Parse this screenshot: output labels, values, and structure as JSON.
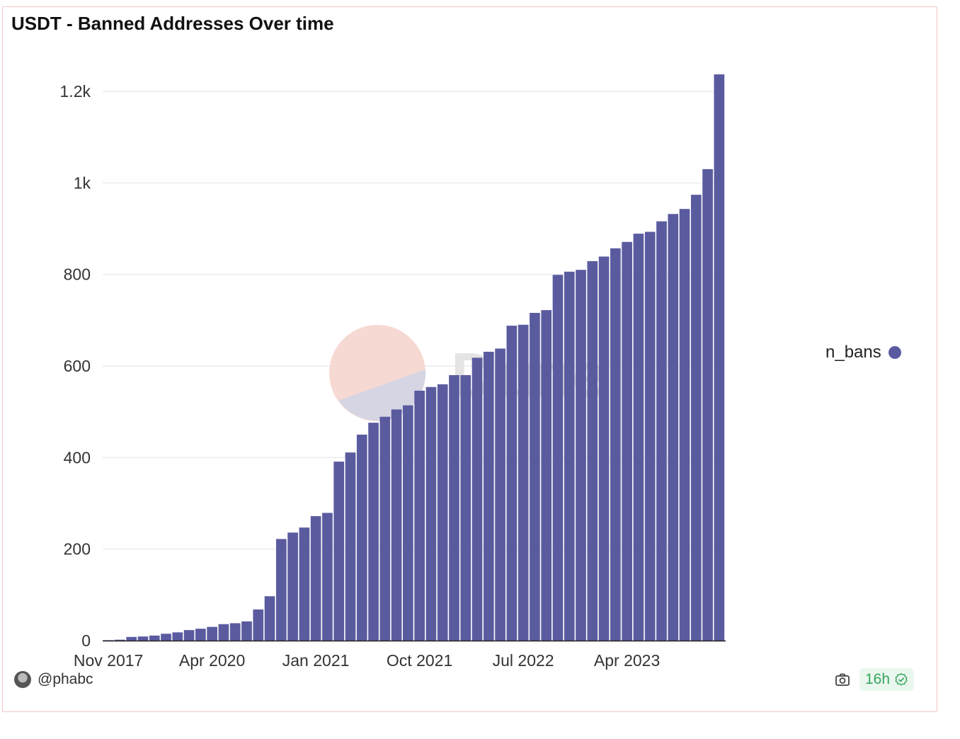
{
  "chart_data": {
    "type": "bar",
    "title": "USDT - Banned Addresses Over time",
    "xlabel": "",
    "ylabel": "",
    "ylim": [
      0,
      1240
    ],
    "grid": true,
    "legend_position": "right",
    "y_ticks": [
      "0",
      "200",
      "400",
      "600",
      "800",
      "1k",
      "1.2k"
    ],
    "y_tick_values": [
      0,
      200,
      400,
      600,
      800,
      1000,
      1200
    ],
    "x_ticks": [
      "Nov 2017",
      "Apr 2020",
      "Jan 2021",
      "Oct 2021",
      "Jul 2022",
      "Apr 2023"
    ],
    "x_tick_bar_index": [
      0,
      9,
      18,
      27,
      36,
      45
    ],
    "series": [
      {
        "name": "n_bans",
        "color": "#5a5b9f",
        "values": [
          1,
          2,
          8,
          9,
          11,
          15,
          18,
          23,
          26,
          30,
          36,
          38,
          42,
          68,
          97,
          222,
          236,
          247,
          272,
          279,
          391,
          411,
          450,
          476,
          489,
          505,
          514,
          546,
          554,
          560,
          580,
          580,
          618,
          631,
          638,
          688,
          690,
          716,
          722,
          799,
          806,
          810,
          829,
          839,
          857,
          871,
          889,
          893,
          916,
          932,
          943,
          974,
          1030,
          1237
        ]
      }
    ]
  },
  "watermark": {
    "text": "Dune",
    "color_a": "#f6d7d0",
    "color_b": "#d3d3e3",
    "text_color": "#e3e3e3"
  },
  "footer": {
    "author": "@phabc",
    "refresh": "16h"
  },
  "icons": {
    "camera": "camera-icon",
    "check": "check-circle-icon",
    "avatar": "avatar"
  }
}
